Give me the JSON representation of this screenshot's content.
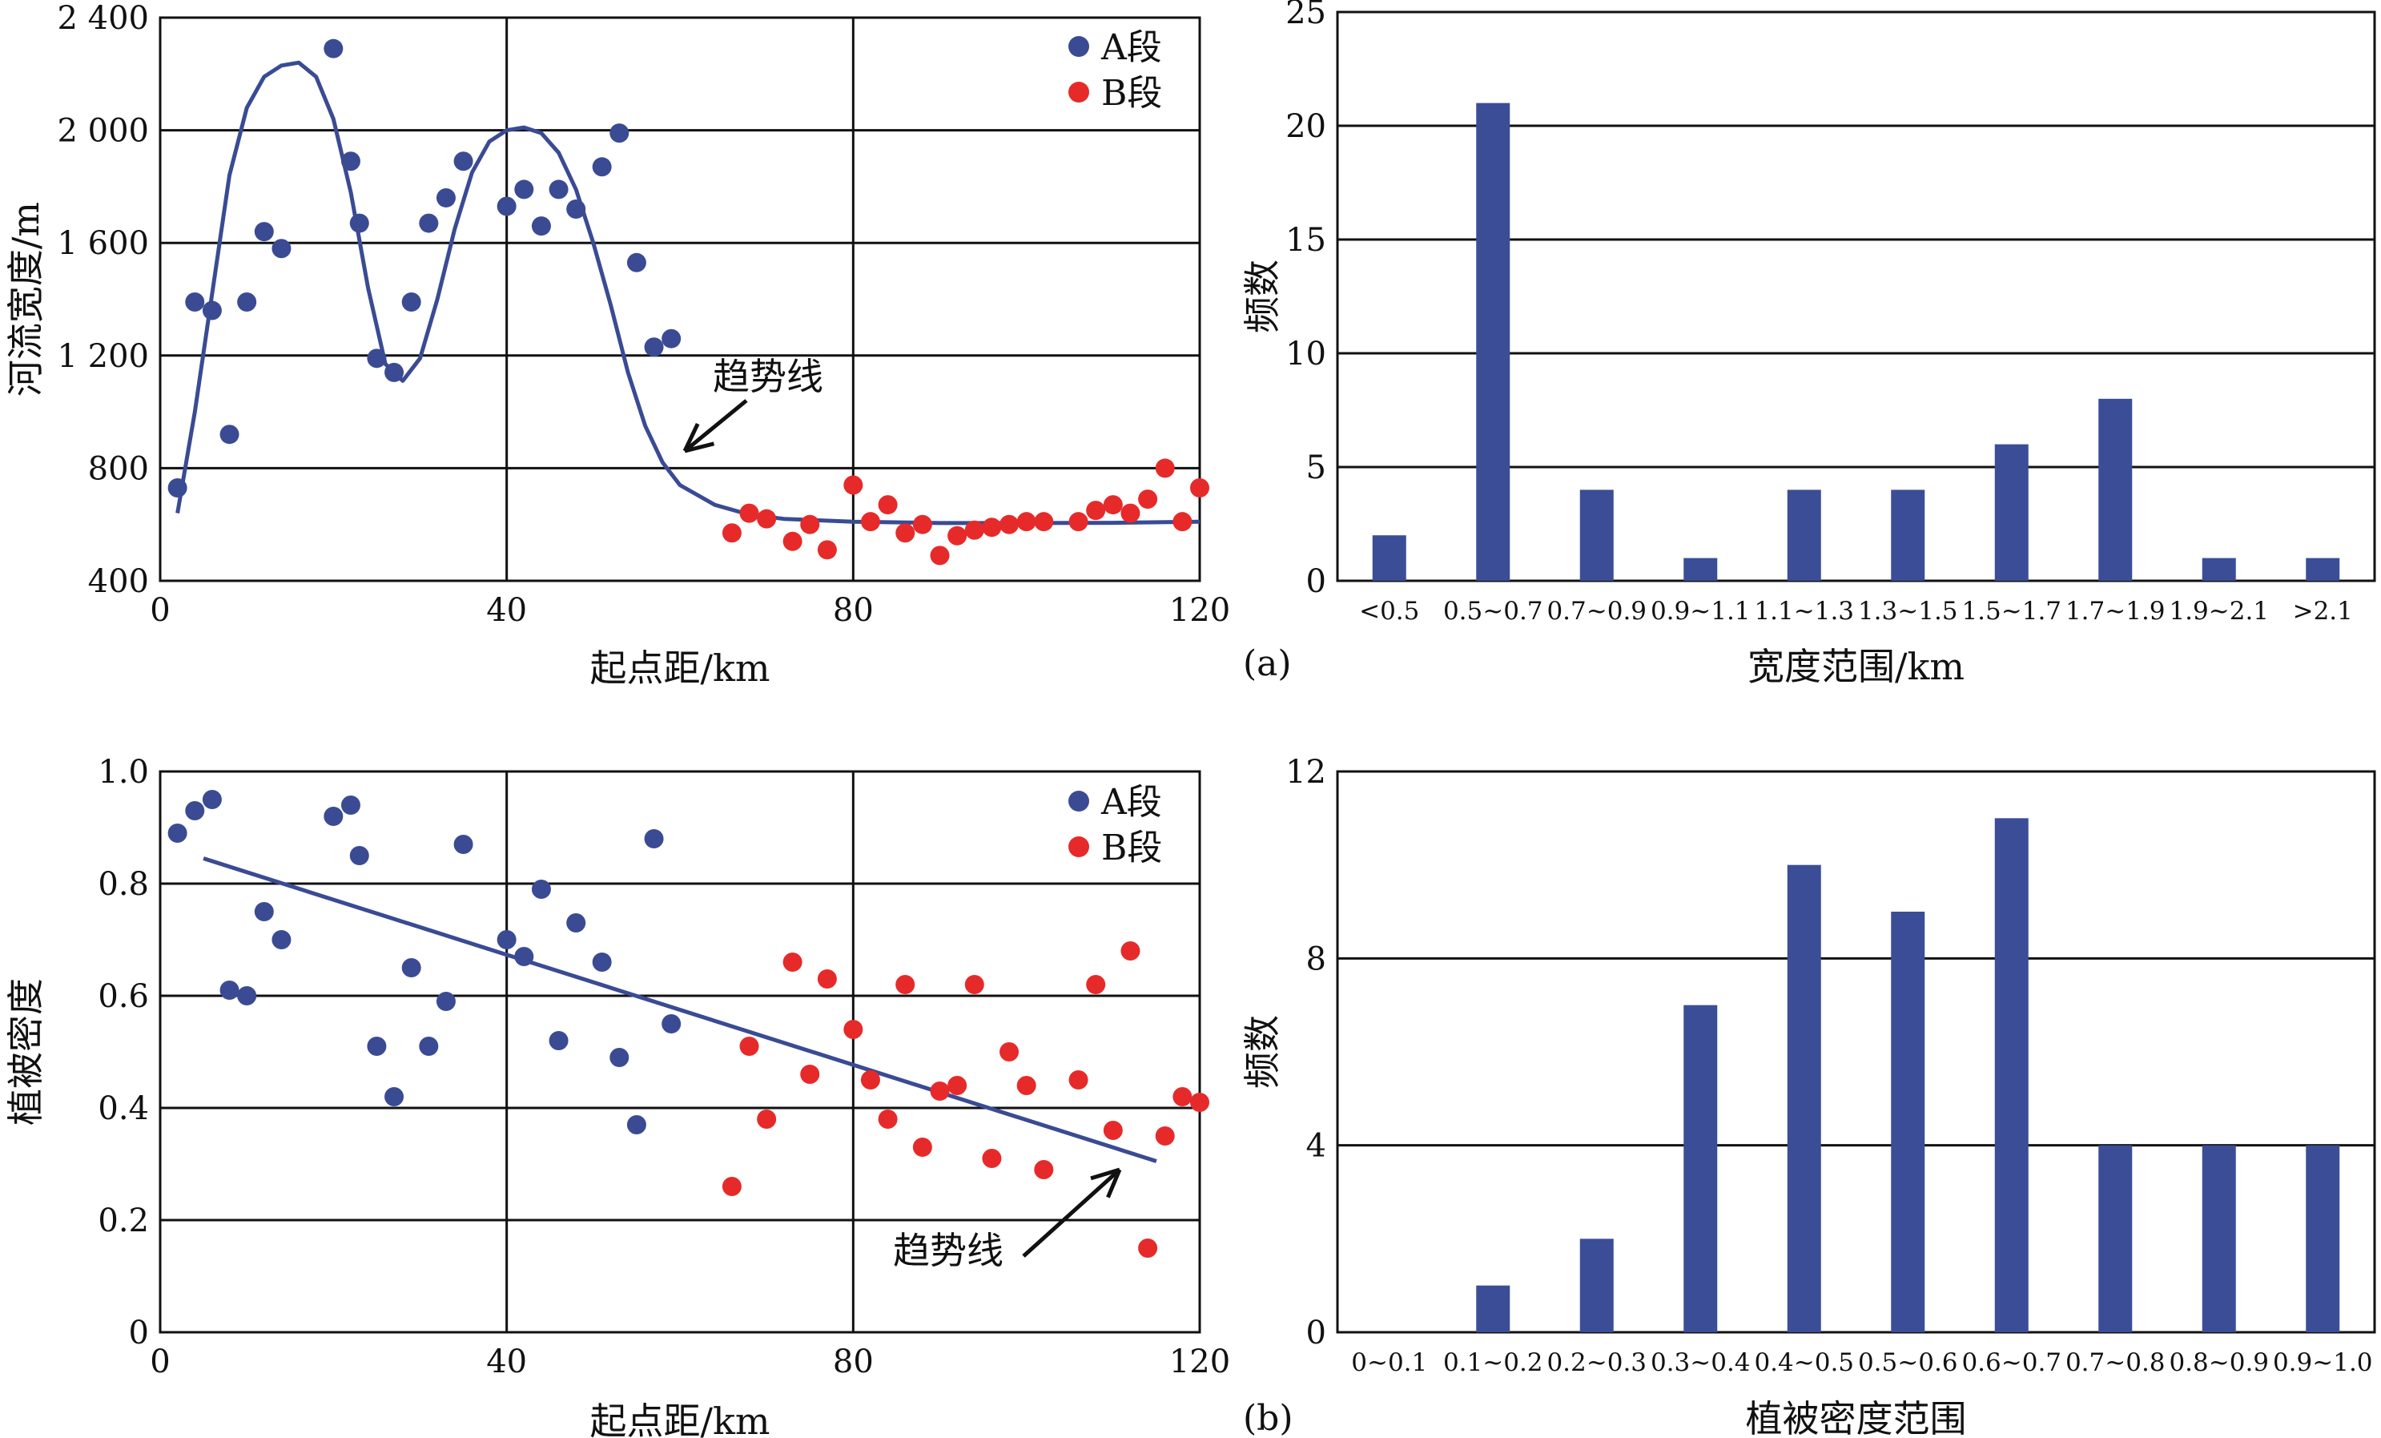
{
  "panel_labels": {
    "a": "(a)",
    "b": "(b)"
  },
  "colors": {
    "series_a": "#3a4b94",
    "series_b": "#e62a2a",
    "bar": "#3b4d96",
    "axis": "#111111"
  },
  "chart_data": [
    {
      "id": "width_scatter",
      "type": "scatter",
      "xlabel": "起点距/km",
      "ylabel": "河流宽度/m",
      "xlim": [
        0,
        120
      ],
      "ylim": [
        400,
        2400
      ],
      "xticks": [
        0,
        40,
        80,
        120
      ],
      "xtick_labels": [
        "0",
        "40",
        "80",
        "120"
      ],
      "yticks": [
        400,
        800,
        1200,
        1600,
        2000,
        2400
      ],
      "ytick_labels": [
        "400",
        "800",
        "1 200",
        "1 600",
        "2 000",
        "2 400"
      ],
      "grid": true,
      "legend_position": "top-right",
      "series": [
        {
          "name": "A段",
          "color": "#3a4b94",
          "points": [
            [
              2,
              730
            ],
            [
              4,
              1390
            ],
            [
              6,
              1360
            ],
            [
              8,
              920
            ],
            [
              10,
              1390
            ],
            [
              12,
              1640
            ],
            [
              14,
              1580
            ],
            [
              20,
              2290
            ],
            [
              22,
              1890
            ],
            [
              23,
              1670
            ],
            [
              25,
              1190
            ],
            [
              27,
              1140
            ],
            [
              29,
              1390
            ],
            [
              31,
              1670
            ],
            [
              33,
              1760
            ],
            [
              35,
              1890
            ],
            [
              40,
              1730
            ],
            [
              42,
              1790
            ],
            [
              44,
              1660
            ],
            [
              46,
              1790
            ],
            [
              48,
              1720
            ],
            [
              51,
              1870
            ],
            [
              53,
              1990
            ],
            [
              55,
              1530
            ],
            [
              57,
              1230
            ],
            [
              59,
              1260
            ]
          ]
        },
        {
          "name": "B段",
          "color": "#e62a2a",
          "points": [
            [
              66,
              570
            ],
            [
              68,
              640
            ],
            [
              70,
              620
            ],
            [
              73,
              540
            ],
            [
              75,
              600
            ],
            [
              77,
              510
            ],
            [
              80,
              740
            ],
            [
              82,
              610
            ],
            [
              84,
              670
            ],
            [
              86,
              570
            ],
            [
              88,
              600
            ],
            [
              90,
              490
            ],
            [
              92,
              560
            ],
            [
              94,
              580
            ],
            [
              96,
              590
            ],
            [
              98,
              600
            ],
            [
              100,
              610
            ],
            [
              102,
              610
            ],
            [
              106,
              610
            ],
            [
              108,
              650
            ],
            [
              110,
              670
            ],
            [
              112,
              640
            ],
            [
              114,
              690
            ],
            [
              116,
              800
            ],
            [
              118,
              610
            ],
            [
              120,
              730
            ]
          ]
        }
      ],
      "trend_line": {
        "color": "#3a4b94",
        "points": [
          [
            2,
            640
          ],
          [
            4,
            1000
          ],
          [
            6,
            1420
          ],
          [
            8,
            1840
          ],
          [
            10,
            2080
          ],
          [
            12,
            2190
          ],
          [
            14,
            2230
          ],
          [
            16,
            2240
          ],
          [
            18,
            2190
          ],
          [
            20,
            2040
          ],
          [
            22,
            1780
          ],
          [
            24,
            1440
          ],
          [
            26,
            1170
          ],
          [
            28,
            1110
          ],
          [
            30,
            1190
          ],
          [
            32,
            1400
          ],
          [
            34,
            1650
          ],
          [
            36,
            1850
          ],
          [
            38,
            1960
          ],
          [
            40,
            2000
          ],
          [
            42,
            2010
          ],
          [
            44,
            1990
          ],
          [
            46,
            1920
          ],
          [
            48,
            1790
          ],
          [
            50,
            1600
          ],
          [
            52,
            1380
          ],
          [
            54,
            1140
          ],
          [
            56,
            950
          ],
          [
            58,
            820
          ],
          [
            60,
            740
          ],
          [
            64,
            670
          ],
          [
            68,
            635
          ],
          [
            72,
            620
          ],
          [
            80,
            610
          ],
          [
            90,
            605
          ],
          [
            100,
            605
          ],
          [
            110,
            606
          ],
          [
            120,
            610
          ]
        ]
      },
      "annotation": {
        "text": "趋势线"
      }
    },
    {
      "id": "width_hist",
      "type": "bar",
      "xlabel": "宽度范围/km",
      "ylabel": "频数",
      "ylim": [
        0,
        25
      ],
      "yticks": [
        0,
        5,
        10,
        15,
        20,
        25
      ],
      "ytick_labels": [
        "0",
        "5",
        "10",
        "15",
        "20",
        "25"
      ],
      "grid": true,
      "categories": [
        "<0.5",
        "0.5~0.7",
        "0.7~0.9",
        "0.9~1.1",
        "1.1~1.3",
        "1.3~1.5",
        "1.5~1.7",
        "1.7~1.9",
        "1.9~2.1",
        ">2.1"
      ],
      "values": [
        2,
        21,
        4,
        1,
        4,
        4,
        6,
        8,
        1,
        1
      ]
    },
    {
      "id": "veg_scatter",
      "type": "scatter",
      "xlabel": "起点距/km",
      "ylabel": "植被密度",
      "xlim": [
        0,
        120
      ],
      "ylim": [
        0,
        1.0
      ],
      "xticks": [
        0,
        40,
        80,
        120
      ],
      "xtick_labels": [
        "0",
        "40",
        "80",
        "120"
      ],
      "yticks": [
        0,
        0.2,
        0.4,
        0.6,
        0.8,
        1.0
      ],
      "ytick_labels": [
        "0",
        "0.2",
        "0.4",
        "0.6",
        "0.8",
        "1.0"
      ],
      "grid": true,
      "legend_position": "top-right",
      "series": [
        {
          "name": "A段",
          "color": "#3a4b94",
          "points": [
            [
              2,
              0.89
            ],
            [
              4,
              0.93
            ],
            [
              6,
              0.95
            ],
            [
              8,
              0.61
            ],
            [
              10,
              0.6
            ],
            [
              12,
              0.75
            ],
            [
              14,
              0.7
            ],
            [
              20,
              0.92
            ],
            [
              22,
              0.94
            ],
            [
              23,
              0.85
            ],
            [
              25,
              0.51
            ],
            [
              27,
              0.42
            ],
            [
              29,
              0.65
            ],
            [
              31,
              0.51
            ],
            [
              33,
              0.59
            ],
            [
              35,
              0.87
            ],
            [
              40,
              0.7
            ],
            [
              42,
              0.67
            ],
            [
              44,
              0.79
            ],
            [
              46,
              0.52
            ],
            [
              48,
              0.73
            ],
            [
              51,
              0.66
            ],
            [
              53,
              0.49
            ],
            [
              55,
              0.37
            ],
            [
              57,
              0.88
            ],
            [
              59,
              0.55
            ]
          ]
        },
        {
          "name": "B段",
          "color": "#e62a2a",
          "points": [
            [
              66,
              0.26
            ],
            [
              68,
              0.51
            ],
            [
              70,
              0.38
            ],
            [
              73,
              0.66
            ],
            [
              75,
              0.46
            ],
            [
              77,
              0.63
            ],
            [
              80,
              0.54
            ],
            [
              82,
              0.45
            ],
            [
              84,
              0.38
            ],
            [
              86,
              0.62
            ],
            [
              88,
              0.33
            ],
            [
              90,
              0.43
            ],
            [
              92,
              0.44
            ],
            [
              94,
              0.62
            ],
            [
              96,
              0.31
            ],
            [
              98,
              0.5
            ],
            [
              100,
              0.44
            ],
            [
              102,
              0.29
            ],
            [
              106,
              0.45
            ],
            [
              108,
              0.62
            ],
            [
              110,
              0.36
            ],
            [
              112,
              0.68
            ],
            [
              114,
              0.15
            ],
            [
              116,
              0.35
            ],
            [
              118,
              0.42
            ],
            [
              120,
              0.41
            ]
          ]
        }
      ],
      "trend_line": {
        "color": "#3a4b94",
        "points": [
          [
            5,
            0.845
          ],
          [
            115,
            0.305
          ]
        ]
      },
      "annotation": {
        "text": "趋势线"
      }
    },
    {
      "id": "veg_hist",
      "type": "bar",
      "xlabel": "植被密度范围",
      "ylabel": "频数",
      "ylim": [
        0,
        12
      ],
      "yticks": [
        0,
        4,
        8,
        12
      ],
      "ytick_labels": [
        "0",
        "4",
        "8",
        "12"
      ],
      "grid": true,
      "categories": [
        "0~0.1",
        "0.1~0.2",
        "0.2~0.3",
        "0.3~0.4",
        "0.4~0.5",
        "0.5~0.6",
        "0.6~0.7",
        "0.7~0.8",
        "0.8~0.9",
        "0.9~1.0"
      ],
      "values": [
        0,
        1,
        2,
        7,
        10,
        9,
        11,
        4,
        4,
        4
      ]
    }
  ]
}
